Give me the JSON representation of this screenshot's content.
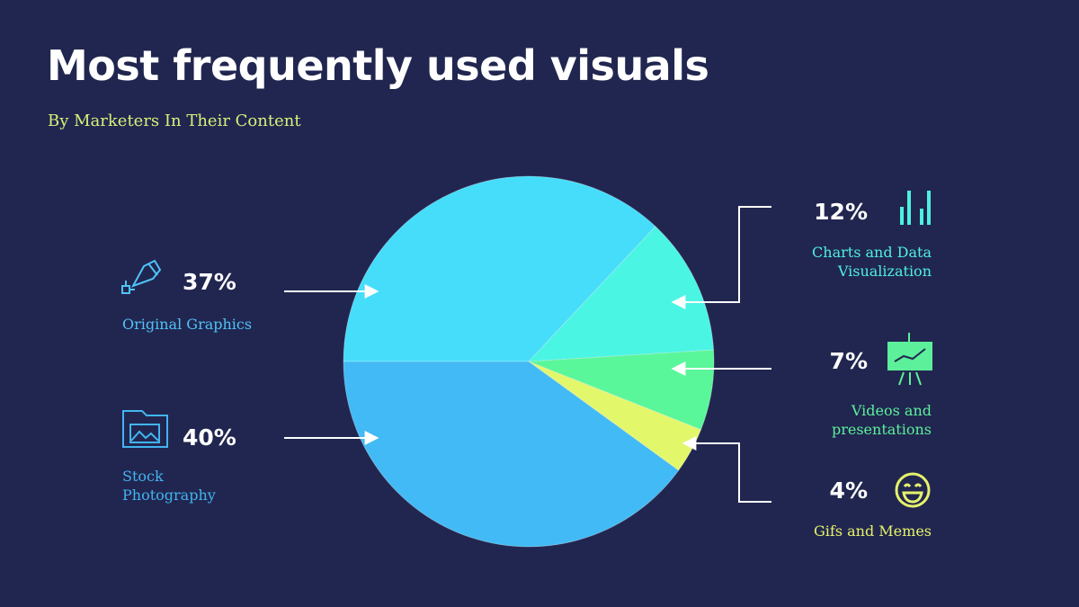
{
  "chart_data": {
    "type": "pie",
    "title": "Most frequently used visuals",
    "subtitle": "By Marketers In Their Content",
    "categories": [
      "Original Graphics",
      "Charts and Data Visualization",
      "Videos and presentations",
      "Gifs and Memes",
      "Stock Photography"
    ],
    "values": [
      37,
      12,
      7,
      4,
      40
    ],
    "value_labels": [
      "37%",
      "12%",
      "7%",
      "4%",
      "40%"
    ],
    "colors": [
      "#45ddfa",
      "#4af5e3",
      "#5af79a",
      "#e3f76b",
      "#42baf5"
    ],
    "label_colors": [
      "#4fc3f7",
      "#4ef0e0",
      "#5cf09a",
      "#e6f26a",
      "#42b4f0"
    ]
  }
}
